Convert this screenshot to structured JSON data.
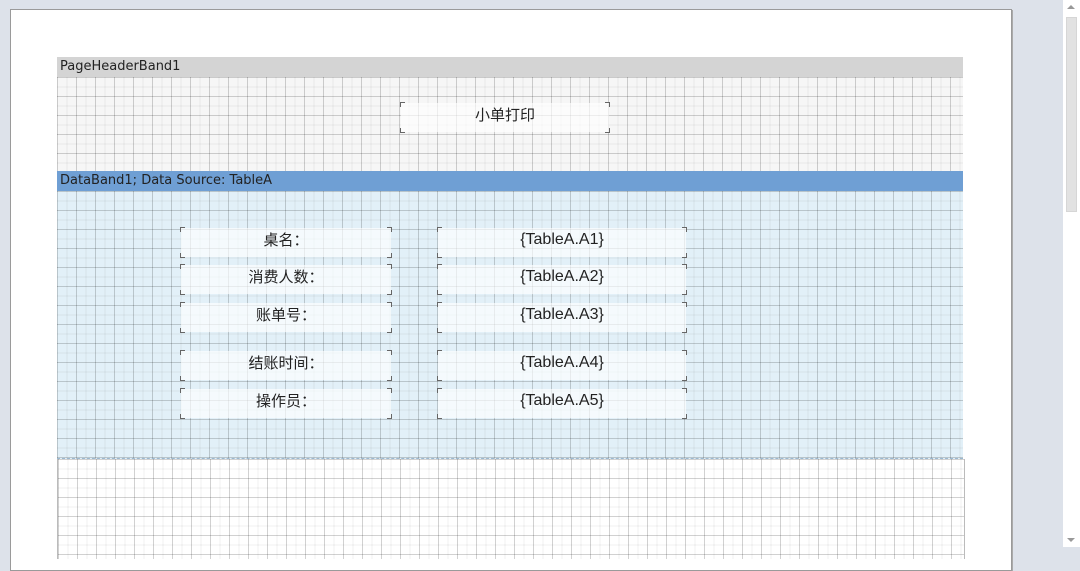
{
  "bands": {
    "page_header": {
      "title": "PageHeaderBand1",
      "report_title": "小单打印"
    },
    "data_band": {
      "title": "DataBand1; Data Source: TableA"
    }
  },
  "fields": [
    {
      "label": "桌名：",
      "value": "{TableA.A1}"
    },
    {
      "label": "消费人数：",
      "value": "{TableA.A2}"
    },
    {
      "label": "账单号：",
      "value": "{TableA.A3}"
    },
    {
      "label": "结账时间：",
      "value": "{TableA.A4}"
    },
    {
      "label": "操作员：",
      "value": "{TableA.A5}"
    }
  ],
  "colors": {
    "header_band": "#d4d4d4",
    "data_band": "#6f9fd4",
    "data_area": "#e2f0f8",
    "workspace": "#dde2ea"
  }
}
